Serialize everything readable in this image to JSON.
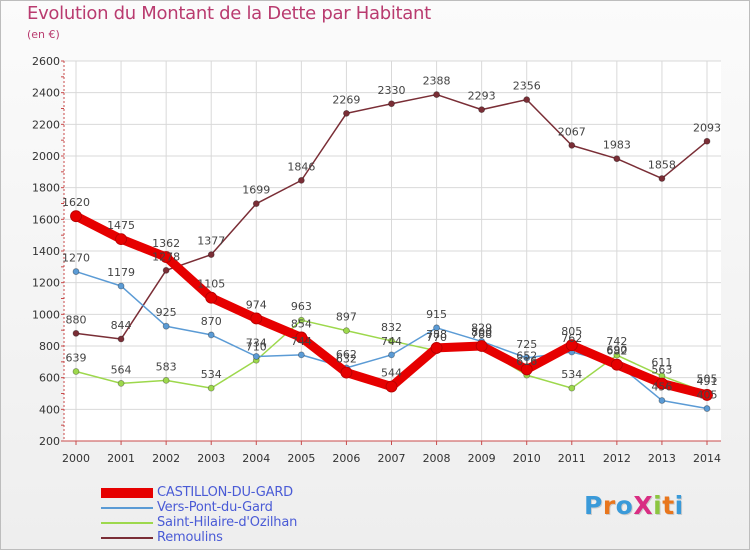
{
  "header": {
    "title": "Evolution du Montant de la Dette par Habitant",
    "subtitle": "(en €)"
  },
  "brand": {
    "text": "ProXiti",
    "colors": [
      "#3a9ad9",
      "#e8761d",
      "#3a9ad9",
      "#d92d83",
      "#8cc63f",
      "#e8761d",
      "#3a9ad9"
    ]
  },
  "colors": {
    "title": "#b93b6f",
    "legend_text": "#4a5bd6",
    "axis": "#c84a4a",
    "grid": "#d9d9d9"
  },
  "chart_data": {
    "type": "line",
    "title": "Evolution du Montant de la Dette par Habitant",
    "subtitle": "(en €)",
    "x": [
      "2000",
      "2001",
      "2002",
      "2003",
      "2004",
      "2005",
      "2006",
      "2007",
      "2008",
      "2009",
      "2010",
      "2011",
      "2012",
      "2013",
      "2014"
    ],
    "ylim": [
      200,
      2600
    ],
    "yticks": [
      200,
      400,
      600,
      800,
      1000,
      1200,
      1400,
      1600,
      1800,
      2000,
      2200,
      2400,
      2600
    ],
    "grid": true,
    "legend_position": "bottom-left",
    "series": [
      {
        "name": "CASTILLON-DU-GARD",
        "color": "#e60000",
        "values": [
          1620,
          1475,
          1362,
          1105,
          974,
          854,
          632,
          544,
          788,
          800,
          652,
          805,
          682,
          563,
          491
        ],
        "labels": [
          "1620",
          "1475",
          "1362",
          "1105",
          "974",
          "854",
          "632",
          "544",
          "788",
          "800",
          "652",
          "805",
          "682",
          "563",
          "491"
        ]
      },
      {
        "name": "Vers-Pont-du-Gard",
        "color": "#5b9bd5",
        "values": [
          1270,
          1179,
          925,
          870,
          734,
          744,
          662,
          744,
          915,
          829,
          725,
          762,
          690,
          456,
          405
        ],
        "labels": [
          "1270",
          "1179",
          "925",
          "870",
          "734",
          "744",
          "662",
          "744",
          "915",
          "829",
          "725",
          "762",
          "690",
          "456",
          "405"
        ]
      },
      {
        "name": "Saint-Hilaire-d'Ozilhan",
        "color": "#9dd84c",
        "values": [
          639,
          564,
          583,
          534,
          710,
          963,
          897,
          832,
          770,
          788,
          616,
          534,
          742,
          611,
          505
        ],
        "labels": [
          "639",
          "564",
          "583",
          "534",
          "710",
          "963",
          "897",
          "832",
          "770",
          "788",
          "616",
          "534",
          "742",
          "611",
          "505"
        ]
      },
      {
        "name": "Remoulins",
        "color": "#7a2e36",
        "values": [
          880,
          844,
          1278,
          1377,
          1699,
          1846,
          2269,
          2330,
          2388,
          2293,
          2356,
          2067,
          1983,
          1858,
          2093
        ],
        "labels": [
          "880",
          "844",
          "1278",
          "1377",
          "1699",
          "1846",
          "2269",
          "2330",
          "2388",
          "2293",
          "2356",
          "2067",
          "1983",
          "1858",
          "2093"
        ]
      }
    ]
  }
}
